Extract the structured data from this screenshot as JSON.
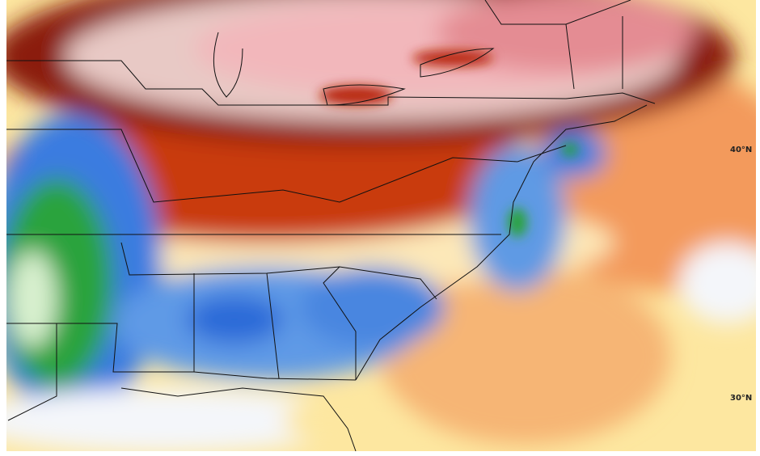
{
  "latitude_labels": [
    "40°N",
    "30°N"
  ]
}
